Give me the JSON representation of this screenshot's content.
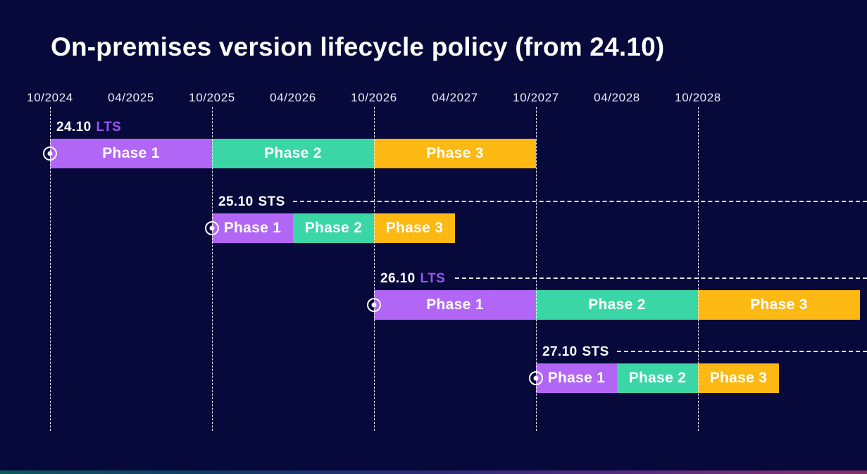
{
  "colors": {
    "background": "#06093a",
    "text": "#ffffff",
    "axis_text": "#eceef8",
    "grid": "#ffffff",
    "lts_text": "#9a55f2",
    "sts_text": "#ffffff",
    "bottom_gradient": [
      "#0e5a5c",
      "#113a66",
      "#2c2a74",
      "#5b2b80",
      "#8a3268"
    ]
  },
  "chart_data": {
    "type": "gantt",
    "title": "On-premises version lifecycle policy (from 24.10)",
    "x_axis": {
      "origin": "10/2024",
      "ticks": [
        "10/2024",
        "04/2025",
        "10/2025",
        "04/2026",
        "10/2026",
        "04/2027",
        "10/2027",
        "04/2028",
        "10/2028"
      ],
      "gridlines": [
        "10/2024",
        "10/2025",
        "10/2026",
        "10/2027",
        "10/2028"
      ],
      "grid_on": true
    },
    "phase_colors": {
      "Phase 1": "#b266f5",
      "Phase 2": "#3bd6a6",
      "Phase 3": "#fcb813"
    },
    "legend_position": "none",
    "rows": [
      {
        "version": "24.10",
        "channel": "LTS",
        "start_marker": true,
        "dashed_line": false,
        "phases": [
          {
            "label": "Phase 1",
            "start": "10/2024",
            "end": "10/2025"
          },
          {
            "label": "Phase 2",
            "start": "10/2025",
            "end": "10/2026"
          },
          {
            "label": "Phase 3",
            "start": "10/2026",
            "end": "10/2027"
          }
        ]
      },
      {
        "version": "25.10",
        "channel": "STS",
        "start_marker": true,
        "dashed_line": true,
        "phases": [
          {
            "label": "Phase 1",
            "start": "10/2025",
            "end": "04/2026"
          },
          {
            "label": "Phase 2",
            "start": "04/2026",
            "end": "10/2026"
          },
          {
            "label": "Phase 3",
            "start": "10/2026",
            "end": "04/2027"
          }
        ]
      },
      {
        "version": "26.10",
        "channel": "LTS",
        "start_marker": true,
        "dashed_line": true,
        "phases": [
          {
            "label": "Phase 1",
            "start": "10/2026",
            "end": "10/2027"
          },
          {
            "label": "Phase 2",
            "start": "10/2027",
            "end": "10/2028"
          },
          {
            "label": "Phase 3",
            "start": "10/2028",
            "end": "10/2029"
          }
        ]
      },
      {
        "version": "27.10",
        "channel": "STS",
        "start_marker": true,
        "dashed_line": true,
        "phases": [
          {
            "label": "Phase 1",
            "start": "10/2027",
            "end": "04/2028"
          },
          {
            "label": "Phase 2",
            "start": "04/2028",
            "end": "10/2028"
          },
          {
            "label": "Phase 3",
            "start": "10/2028",
            "end": "04/2029"
          }
        ]
      }
    ]
  }
}
